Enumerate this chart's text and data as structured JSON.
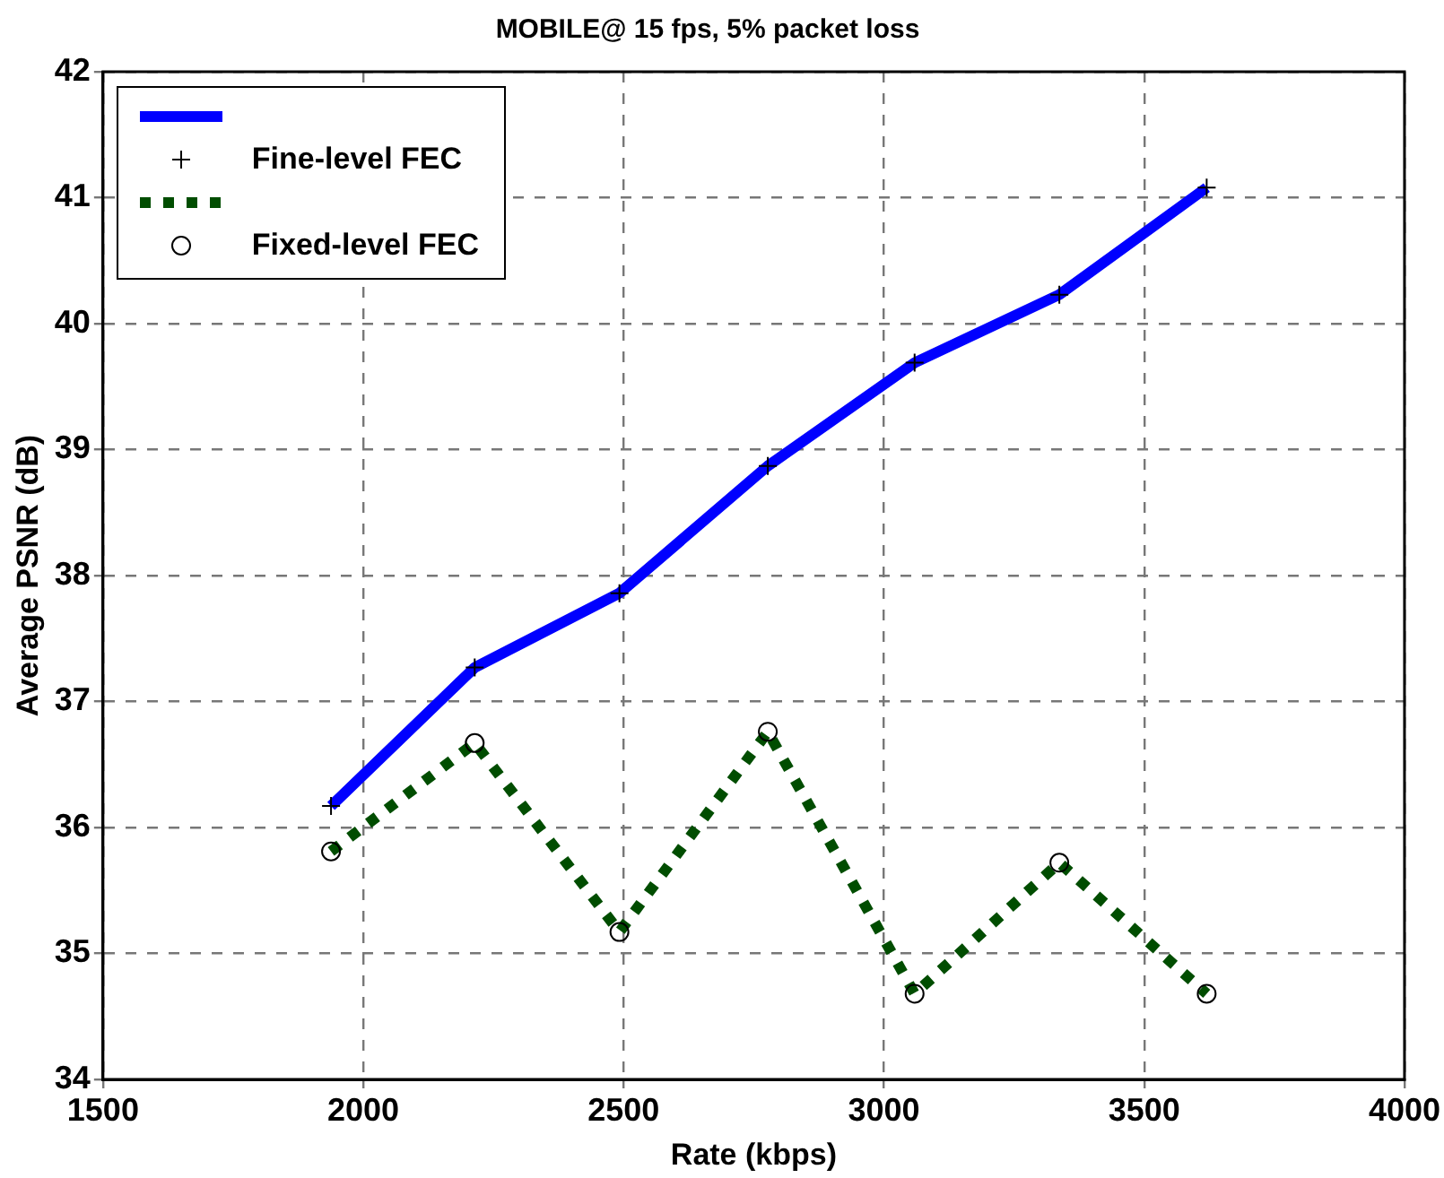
{
  "chart_data": {
    "type": "line",
    "title": "MOBILE@ 15 fps, 5% packet loss",
    "xlabel": "Rate (kbps)",
    "ylabel": "Average PSNR (dB)",
    "x": [
      1938,
      2214,
      2492,
      2777,
      3059,
      3337,
      3620
    ],
    "series": [
      {
        "color": "#0000ff",
        "line_style": "solid",
        "marker": "none",
        "values": [
          36.17,
          37.27,
          37.86,
          38.87,
          39.69,
          40.23,
          41.08
        ]
      },
      {
        "type": "scatter",
        "name": "Fine-level FEC",
        "color": "#000000",
        "marker": "cross",
        "values": [
          36.17,
          37.27,
          37.86,
          38.87,
          39.69,
          40.23,
          41.08
        ]
      },
      {
        "color": "#004d00",
        "line_style": "dotted",
        "marker": "none",
        "values": [
          35.81,
          36.67,
          35.17,
          36.76,
          34.68,
          35.72,
          34.68
        ]
      },
      {
        "type": "scatter",
        "name": "Fixed-level FEC",
        "color": "#000000",
        "marker": "circle",
        "values": [
          35.81,
          36.67,
          35.17,
          36.76,
          34.68,
          35.72,
          34.68
        ]
      }
    ],
    "xlim": [
      1500,
      4000
    ],
    "xticks": [
      1500,
      2000,
      2500,
      3000,
      3500,
      4000
    ],
    "ylim": [
      34,
      42
    ],
    "yticks": [
      34,
      35,
      36,
      37,
      38,
      39,
      40,
      41,
      42
    ],
    "grid": true,
    "legend": "top left"
  }
}
